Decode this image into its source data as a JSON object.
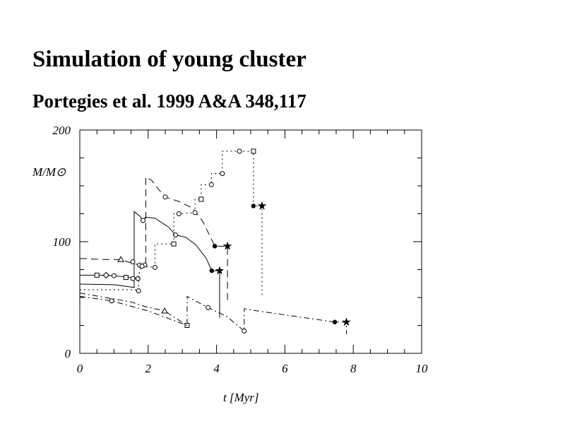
{
  "title": "Simulation of young cluster",
  "subtitle": "Portegies et al. 1999 A&A 348,117",
  "chart_data": {
    "type": "line",
    "title": "Simulation of young cluster",
    "subtitle": "Portegies et al. 1999 A&A 348,117",
    "xlabel": "t [Myr]",
    "ylabel": "M/M⊙",
    "xlim": [
      0,
      10
    ],
    "ylim": [
      0,
      200
    ],
    "xticks": [
      "0",
      "2",
      "4",
      "6",
      "8",
      "10"
    ],
    "yticks": [
      "0",
      "100",
      "200"
    ],
    "grid": false,
    "series": [
      {
        "name": "solid-upper",
        "style": "solid",
        "points": [
          [
            0,
            62
          ],
          [
            1.0,
            61.5
          ],
          [
            1.59,
            59
          ],
          [
            1.59,
            127
          ],
          [
            1.75,
            123
          ],
          [
            1.85,
            119
          ],
          [
            1.92,
            122
          ],
          [
            2.2,
            121
          ],
          [
            2.6,
            113
          ],
          [
            2.8,
            106
          ],
          [
            3.1,
            104
          ],
          [
            3.4,
            97
          ],
          [
            3.7,
            85
          ],
          [
            3.86,
            74
          ],
          [
            4.09,
            74
          ],
          [
            4.09,
            32
          ]
        ],
        "markers": [
          [
            1.85,
            119,
            "circle"
          ],
          [
            2.8,
            106,
            "circle"
          ],
          [
            3.86,
            74,
            "filled"
          ],
          [
            4.09,
            74,
            "star"
          ]
        ]
      },
      {
        "name": "solid-lower",
        "style": "solid",
        "points": [
          [
            0,
            70
          ],
          [
            0.5,
            70
          ],
          [
            1.0,
            69.5
          ],
          [
            1.5,
            68
          ],
          [
            1.7,
            67
          ]
        ],
        "markers": [
          [
            0.5,
            70,
            "square"
          ],
          [
            0.77,
            70,
            "diamond"
          ],
          [
            1.0,
            69.5,
            "circle"
          ],
          [
            1.35,
            68,
            "square"
          ],
          [
            1.55,
            67,
            "circle"
          ],
          [
            1.7,
            67,
            "circle"
          ]
        ]
      },
      {
        "name": "dashed",
        "style": "dashed",
        "points": [
          [
            0,
            85
          ],
          [
            0.7,
            84
          ],
          [
            1.2,
            84
          ],
          [
            1.6,
            80
          ],
          [
            1.9,
            79
          ],
          [
            1.93,
            79
          ],
          [
            1.93,
            158
          ],
          [
            2.1,
            155
          ],
          [
            2.3,
            147
          ],
          [
            2.5,
            140
          ],
          [
            2.9,
            136
          ],
          [
            3.3,
            130
          ],
          [
            3.6,
            118
          ],
          [
            3.95,
            96
          ],
          [
            4.32,
            96
          ],
          [
            4.32,
            46
          ]
        ],
        "markers": [
          [
            1.2,
            84,
            "triangle"
          ],
          [
            1.55,
            82,
            "circle"
          ],
          [
            1.75,
            79,
            "circle"
          ],
          [
            1.9,
            79,
            "circle"
          ],
          [
            2.5,
            140,
            "circle"
          ],
          [
            3.95,
            96,
            "filled"
          ],
          [
            4.32,
            96,
            "star"
          ]
        ]
      },
      {
        "name": "dotted",
        "style": "dotted",
        "points": [
          [
            0,
            57
          ],
          [
            1.6,
            57
          ],
          [
            1.72,
            56
          ],
          [
            1.72,
            70
          ],
          [
            1.8,
            78
          ],
          [
            2.2,
            77
          ],
          [
            2.2,
            98
          ],
          [
            2.75,
            98
          ],
          [
            2.75,
            125
          ],
          [
            2.9,
            125
          ],
          [
            3.37,
            126
          ],
          [
            3.37,
            138
          ],
          [
            3.55,
            138
          ],
          [
            3.55,
            151
          ],
          [
            3.85,
            151
          ],
          [
            3.85,
            161
          ],
          [
            4.17,
            161
          ],
          [
            4.17,
            181
          ],
          [
            4.67,
            181
          ],
          [
            5.08,
            181
          ],
          [
            5.08,
            132
          ],
          [
            5.33,
            132
          ],
          [
            5.33,
            52
          ]
        ],
        "markers": [
          [
            1.72,
            56,
            "circle"
          ],
          [
            1.82,
            78,
            "circle"
          ],
          [
            2.2,
            77,
            "circle"
          ],
          [
            2.75,
            98,
            "square"
          ],
          [
            2.9,
            125,
            "circle"
          ],
          [
            3.37,
            126,
            "circle"
          ],
          [
            3.55,
            138,
            "square"
          ],
          [
            3.85,
            151,
            "circle"
          ],
          [
            4.17,
            161,
            "circle"
          ],
          [
            4.67,
            181,
            "circle"
          ],
          [
            5.08,
            181,
            "square"
          ],
          [
            5.08,
            132,
            "filled"
          ],
          [
            5.33,
            132,
            "star"
          ]
        ]
      },
      {
        "name": "dash-dot-upper",
        "style": "dashdot",
        "points": [
          [
            0,
            54
          ],
          [
            1.5,
            46
          ],
          [
            1.9,
            42
          ],
          [
            2.48,
            38
          ],
          [
            3.14,
            25
          ],
          [
            3.14,
            51
          ],
          [
            3.75,
            41
          ],
          [
            4.3,
            33
          ],
          [
            4.81,
            20
          ],
          [
            4.81,
            40
          ],
          [
            5.2,
            38
          ],
          [
            7.46,
            28
          ],
          [
            7.8,
            28
          ],
          [
            7.8,
            17
          ]
        ],
        "markers": [
          [
            2.48,
            38,
            "triangle"
          ],
          [
            3.14,
            25,
            "square"
          ],
          [
            3.75,
            41,
            "circle"
          ],
          [
            4.81,
            20,
            "circle"
          ],
          [
            7.46,
            28,
            "filled"
          ],
          [
            7.8,
            28,
            "star"
          ]
        ]
      },
      {
        "name": "dash-dot-lower",
        "style": "dashdot",
        "points": [
          [
            0,
            51
          ],
          [
            0.93,
            47
          ],
          [
            2.0,
            38
          ],
          [
            3.14,
            25
          ]
        ],
        "markers": [
          [
            0.93,
            47,
            "circle"
          ]
        ]
      }
    ]
  }
}
